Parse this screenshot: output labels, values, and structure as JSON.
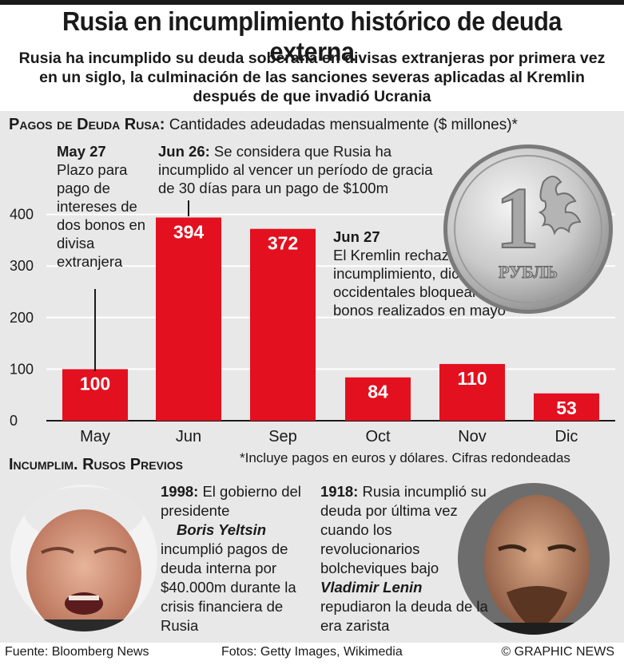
{
  "title": "Rusia en incumplimiento histórico de deuda externa",
  "subtitle": "Rusia ha incumplido su deuda soberana en divisas extranjeras por primera vez en un siglo, la culminación de las sanciones severas aplicadas al Kremlin después de que invadió Ucrania",
  "section1": {
    "head": "Pagos de Deuda Rusa:",
    "text": "Cantidades adeudadas mensualmente ($ millones)*"
  },
  "annotations": {
    "may27": {
      "date": "May 27",
      "text": "Plazo para pago de intereses de dos bonos en divisa extranjera"
    },
    "jun26": {
      "date": "Jun 26:",
      "text": "Se considera que Rusia ha incumplido al vencer un período de gracia de 30 días para un pago de $100m"
    },
    "jun27": {
      "date": "Jun 27",
      "text": "El Kremlin rechaza acusaciones de incumplimiento, dice que las sanciones occidentales bloquearon los pagos de bonos realizados en mayo"
    }
  },
  "ruble": {
    "numeral": "1",
    "word": "РУБЛЬ"
  },
  "chart_data": {
    "type": "bar",
    "categories": [
      "May",
      "Jun",
      "Sep",
      "Oct",
      "Nov",
      "Dic"
    ],
    "values": [
      100,
      394,
      372,
      84,
      110,
      53
    ],
    "title": "Pagos de Deuda Rusa: Cantidades adeudadas mensualmente ($ millones)*",
    "ylim": [
      0,
      400
    ],
    "yticks": [
      0,
      100,
      200,
      300,
      400
    ],
    "grid": true,
    "bar_color": "#e3101f",
    "label_color": "#ffffff"
  },
  "footnote": "*Incluye pagos en euros y dólares. Cifras redondeadas",
  "section2": {
    "head": "Incumplim. Rusos Previos"
  },
  "history": {
    "y1998": {
      "year": "1998:",
      "pre": "El gobierno del presidente",
      "name": "Boris Yeltsin",
      "post": "incumplió pagos de deuda interna por $40.000m durante la crisis financiera de Rusia"
    },
    "y1918": {
      "year": "1918:",
      "pre": "Rusia incumplió su deuda por última vez cuando los revolucionarios bolcheviques bajo",
      "name": "Vladimir Lenin",
      "post": "repudiaron la deuda  de la era zarista"
    }
  },
  "footer": {
    "source": "Fuente: Bloomberg News",
    "photos": "Fotos: Getty Images, Wikimedia",
    "credit": "© GRAPHIC NEWS"
  },
  "colors": {
    "panel": "#e8e8e8",
    "bar": "#e3101f",
    "text": "#1a1a1a"
  }
}
